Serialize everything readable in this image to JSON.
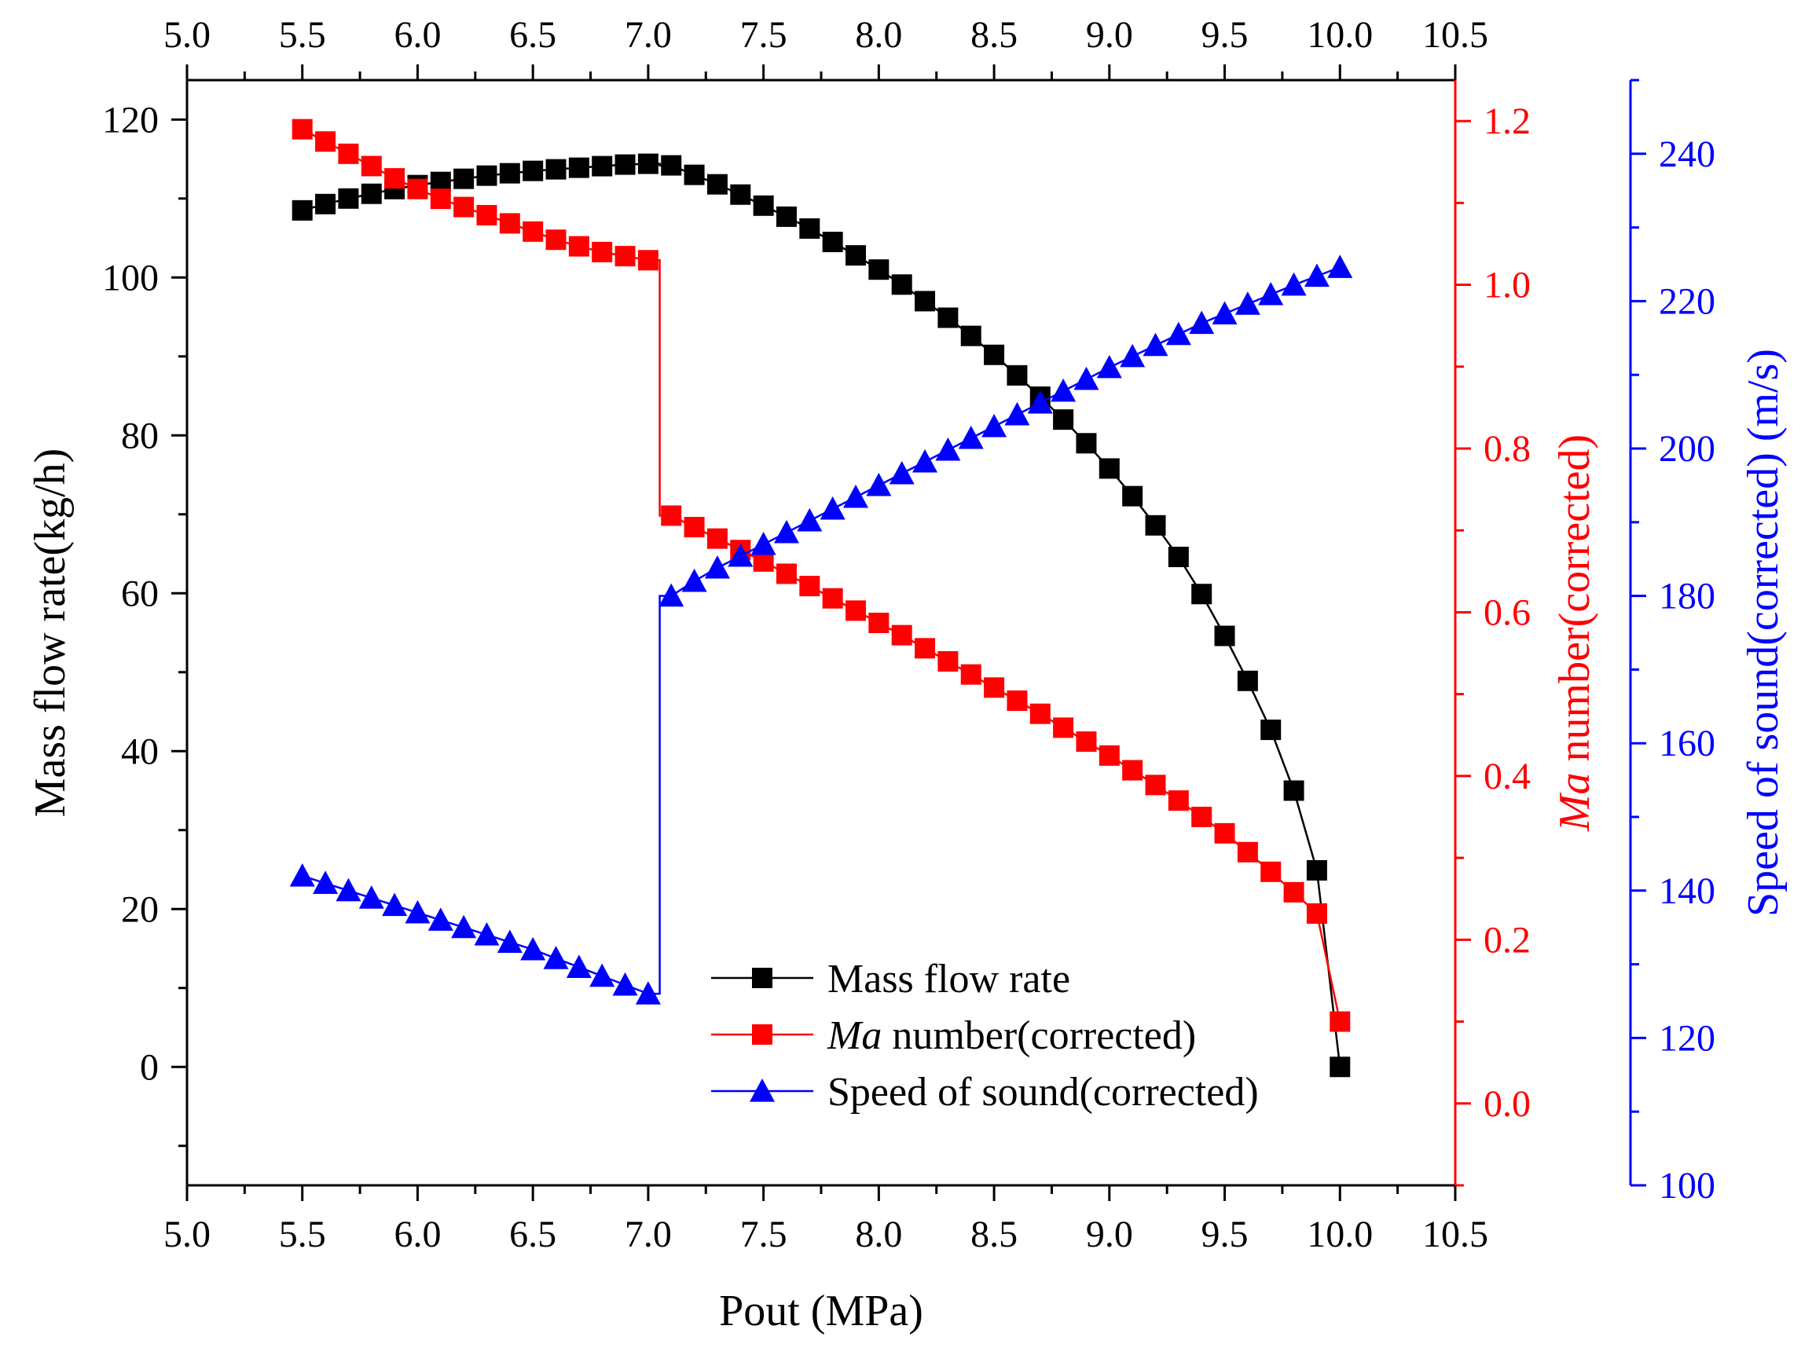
{
  "chart_data": {
    "type": "scatter",
    "title": "",
    "xlabel": "Pout (MPa)",
    "xlim": [
      5.0,
      10.5
    ],
    "xticks": [
      "5.0",
      "5.5",
      "6.0",
      "6.5",
      "7.0",
      "7.5",
      "8.0",
      "8.5",
      "9.0",
      "9.5",
      "10.0",
      "10.5"
    ],
    "axes": {
      "left": {
        "label": "Mass flow rate(kg/h)",
        "ylim": [
          -15,
          125
        ],
        "ticks": [
          "0",
          "20",
          "40",
          "60",
          "80",
          "100",
          "120"
        ],
        "color": "#000000"
      },
      "right1": {
        "label_italic": "Ma",
        "label_rest": " number(corrected)",
        "ylim": [
          -0.1,
          1.25
        ],
        "ticks": [
          "0.0",
          "0.2",
          "0.4",
          "0.6",
          "0.8",
          "1.0",
          "1.2"
        ],
        "color": "#ff0000"
      },
      "right2": {
        "label": "Speed of sound(corrected) (m/s)",
        "ylim": [
          100,
          250
        ],
        "ticks": [
          "100",
          "120",
          "140",
          "160",
          "180",
          "200",
          "220",
          "240"
        ],
        "color": "#0000ff"
      }
    },
    "x": [
      5.5,
      5.6,
      5.7,
      5.8,
      5.9,
      6.0,
      6.1,
      6.2,
      6.3,
      6.4,
      6.5,
      6.6,
      6.7,
      6.8,
      6.9,
      7.0,
      7.1,
      7.2,
      7.3,
      7.4,
      7.5,
      7.6,
      7.7,
      7.8,
      7.9,
      8.0,
      8.1,
      8.2,
      8.3,
      8.4,
      8.5,
      8.6,
      8.7,
      8.8,
      8.9,
      9.0,
      9.1,
      9.2,
      9.3,
      9.4,
      9.5,
      9.6,
      9.7,
      9.8,
      9.9,
      10.0
    ],
    "series": [
      {
        "name": "Mass flow rate",
        "axis": "left",
        "marker": "square",
        "color": "#000000",
        "values": [
          108.5,
          109.3,
          110.0,
          110.6,
          111.2,
          111.7,
          112.1,
          112.5,
          112.9,
          113.2,
          113.5,
          113.7,
          113.9,
          114.1,
          114.3,
          114.4,
          114.2,
          113.0,
          111.8,
          110.5,
          109.1,
          107.7,
          106.2,
          104.5,
          102.8,
          101.0,
          99.1,
          97.0,
          94.9,
          92.6,
          90.2,
          87.6,
          84.9,
          82.0,
          79.0,
          75.8,
          72.3,
          68.6,
          64.6,
          59.9,
          54.6,
          48.9,
          42.7,
          35.0,
          24.9,
          0.0
        ]
      },
      {
        "name": "Ma number(corrected)",
        "name_italic": "Ma",
        "name_rest": " number(corrected)",
        "axis": "right1",
        "marker": "square",
        "color": "#ff0000",
        "values": [
          1.19,
          1.175,
          1.16,
          1.145,
          1.13,
          1.117,
          1.105,
          1.095,
          1.085,
          1.075,
          1.065,
          1.055,
          1.047,
          1.04,
          1.035,
          1.03,
          0.718,
          0.704,
          0.69,
          0.676,
          0.662,
          0.647,
          0.632,
          0.617,
          0.602,
          0.587,
          0.572,
          0.556,
          0.54,
          0.524,
          0.508,
          0.492,
          0.476,
          0.459,
          0.442,
          0.425,
          0.407,
          0.389,
          0.37,
          0.35,
          0.33,
          0.307,
          0.283,
          0.258,
          0.232,
          0.1
        ]
      },
      {
        "name": "Speed of sound(corrected)",
        "axis": "right2",
        "marker": "triangle",
        "color": "#0000ff",
        "values": [
          142.0,
          141.0,
          140.0,
          139.0,
          138.0,
          137.0,
          136.0,
          135.0,
          134.0,
          133.0,
          132.0,
          130.8,
          129.6,
          128.4,
          127.2,
          126.0,
          180.0,
          182.0,
          183.8,
          185.4,
          187.0,
          188.6,
          190.2,
          191.8,
          193.4,
          195.0,
          196.6,
          198.2,
          199.8,
          201.4,
          203.0,
          204.6,
          206.2,
          207.8,
          209.4,
          211.0,
          212.5,
          214.0,
          215.5,
          217.0,
          218.3,
          219.6,
          220.9,
          222.2,
          223.4,
          224.6
        ]
      }
    ],
    "legend": {
      "position": "bottom-center"
    }
  }
}
